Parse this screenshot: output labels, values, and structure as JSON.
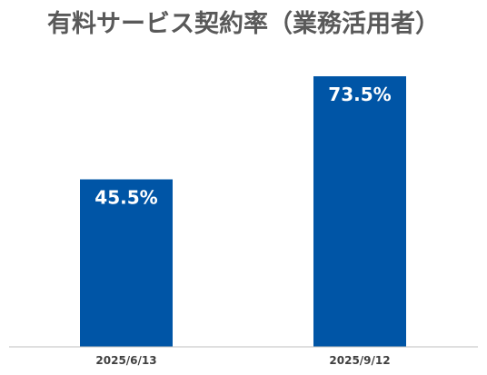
{
  "chart_data": {
    "type": "bar",
    "title": "有料サービス契約率（業務活用者）",
    "categories": [
      "2025/6/13",
      "2025/9/12"
    ],
    "values": [
      45.5,
      73.5
    ],
    "data_labels": [
      "45.5%",
      "73.5%"
    ],
    "xlabel": "",
    "ylabel": "",
    "ylim": [
      0,
      80
    ],
    "grid": false,
    "legend": "none",
    "bar_color": "#0055A6",
    "axis_color": "#BFBFBF",
    "title_color": "#595959",
    "label_color": "#FFFFFF",
    "tick_color": "#404040"
  }
}
